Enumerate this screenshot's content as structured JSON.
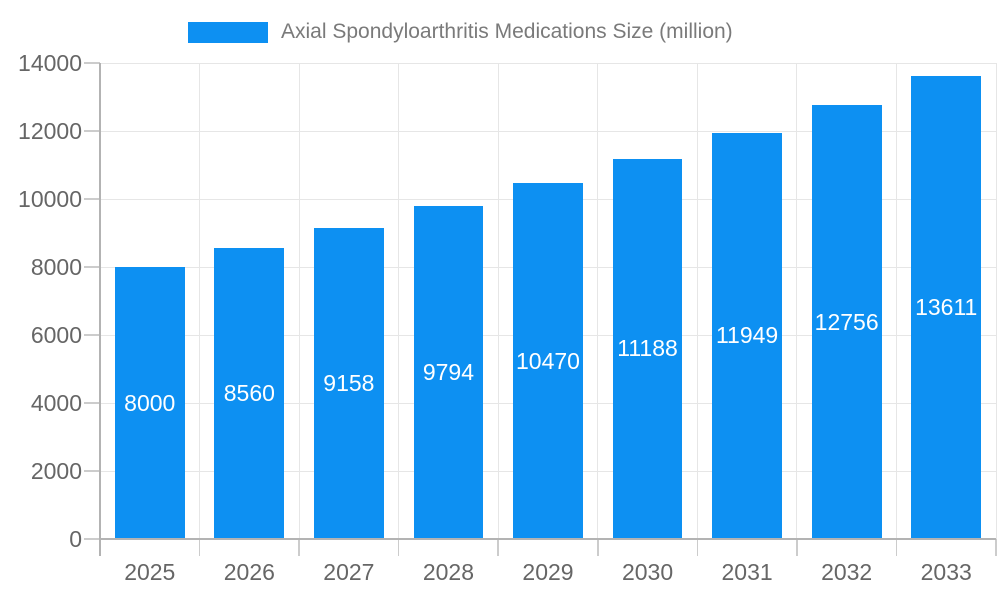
{
  "chart_data": {
    "type": "bar",
    "title": "Axial Spondyloarthritis Medications Size (million)",
    "categories": [
      "2025",
      "2026",
      "2027",
      "2028",
      "2029",
      "2030",
      "2031",
      "2032",
      "2033"
    ],
    "values": [
      8000,
      8560,
      9158,
      9794,
      10470,
      11188,
      11949,
      12756,
      13611
    ],
    "xlabel": "",
    "ylabel": "",
    "ylim": [
      0,
      14000
    ],
    "yticks": [
      0,
      2000,
      4000,
      6000,
      8000,
      10000,
      12000,
      14000
    ],
    "ytick_labels": [
      "0",
      "2000",
      "4000",
      "6000",
      "8000",
      "10000",
      "12000",
      "14000"
    ],
    "grid": true,
    "legend_position": "top",
    "value_labels": "inside-center",
    "colors": {
      "bar": "#0d90f2",
      "value_label": "#ffffff",
      "axis_label": "#666666",
      "title": "#7a7a7a",
      "gridline": "#e6e6e6",
      "axis_line": "#b3b3b3",
      "tick": "#cccccc",
      "background": "#ffffff"
    }
  }
}
